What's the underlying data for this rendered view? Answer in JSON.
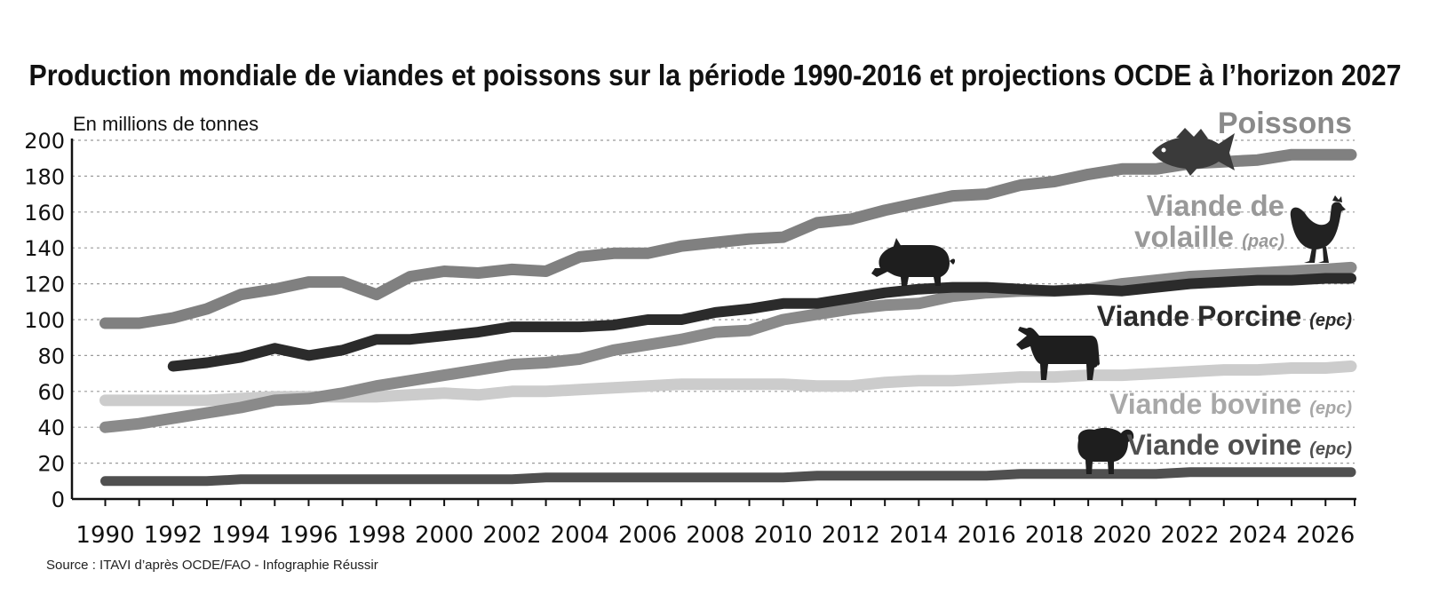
{
  "chart_data": {
    "type": "line",
    "title": "Production mondiale de viandes et poissons sur la période 1990-2016 et projections OCDE à l’horizon 2027",
    "ylabel": "En millions de tonnes",
    "xlabel": "",
    "source": "Source : ITAVI d’après OCDE/FAO - Infographie Réussir",
    "xlim": [
      1990,
      2027
    ],
    "ylim": [
      0,
      200
    ],
    "x_ticks": [
      1990,
      1992,
      1994,
      1996,
      1998,
      2000,
      2002,
      2004,
      2006,
      2008,
      2010,
      2012,
      2014,
      2016,
      2018,
      2020,
      2022,
      2024,
      2026
    ],
    "y_ticks": [
      0,
      20,
      40,
      60,
      80,
      100,
      120,
      140,
      160,
      180,
      200
    ],
    "grid": "horizontal dashed",
    "series": [
      {
        "name": "Poissons",
        "unit": "",
        "color": "#808080",
        "x": [
          1990,
          1991,
          1992,
          1993,
          1994,
          1995,
          1996,
          1997,
          1998,
          1999,
          2000,
          2001,
          2002,
          2003,
          2004,
          2005,
          2006,
          2007,
          2008,
          2009,
          2010,
          2011,
          2012,
          2013,
          2014,
          2015,
          2016,
          2017,
          2018,
          2019,
          2020,
          2021,
          2022,
          2023,
          2024,
          2025,
          2026,
          2027
        ],
        "values": [
          98,
          98,
          101,
          106,
          114,
          117,
          121,
          121,
          114,
          124,
          127,
          126,
          128,
          127,
          135,
          137,
          137,
          141,
          143,
          145,
          146,
          154,
          156,
          161,
          165,
          169,
          170,
          175,
          177,
          181,
          184,
          184,
          187,
          188,
          189,
          192,
          192,
          192
        ]
      },
      {
        "name": "Viande de volaille",
        "unit": "(pac)",
        "color": "#8a8a8a",
        "x": [
          1990,
          1991,
          1992,
          1993,
          1994,
          1995,
          1996,
          1997,
          1998,
          1999,
          2000,
          2001,
          2002,
          2003,
          2004,
          2005,
          2006,
          2007,
          2008,
          2009,
          2010,
          2011,
          2012,
          2013,
          2014,
          2015,
          2016,
          2017,
          2018,
          2019,
          2020,
          2021,
          2022,
          2023,
          2024,
          2025,
          2026,
          2027
        ],
        "values": [
          40,
          42,
          45,
          48,
          51,
          55,
          56,
          59,
          63,
          66,
          69,
          72,
          75,
          76,
          78,
          83,
          86,
          89,
          93,
          94,
          100,
          103,
          106,
          108,
          109,
          113,
          115,
          116,
          116,
          117,
          120,
          122,
          124,
          125,
          126,
          127,
          128,
          129
        ]
      },
      {
        "name": "Viande Porcine",
        "unit": "(epc)",
        "color": "#2b2b2b",
        "x": [
          1992,
          1993,
          1994,
          1995,
          1996,
          1997,
          1998,
          1999,
          2000,
          2001,
          2002,
          2003,
          2004,
          2005,
          2006,
          2007,
          2008,
          2009,
          2010,
          2011,
          2012,
          2013,
          2014,
          2015,
          2016,
          2017,
          2018,
          2019,
          2020,
          2021,
          2022,
          2023,
          2024,
          2025,
          2026,
          2027
        ],
        "values": [
          74,
          76,
          79,
          84,
          80,
          83,
          89,
          89,
          91,
          93,
          96,
          96,
          96,
          97,
          100,
          100,
          104,
          106,
          109,
          109,
          112,
          115,
          117,
          118,
          118,
          117,
          116,
          117,
          116,
          118,
          120,
          121,
          122,
          122,
          123,
          123
        ]
      },
      {
        "name": "Viande bovine",
        "unit": "(epc)",
        "color": "#cccccc",
        "x": [
          1990,
          1991,
          1992,
          1993,
          1994,
          1995,
          1996,
          1997,
          1998,
          1999,
          2000,
          2001,
          2002,
          2003,
          2004,
          2005,
          2006,
          2007,
          2008,
          2009,
          2010,
          2011,
          2012,
          2013,
          2014,
          2015,
          2016,
          2017,
          2018,
          2019,
          2020,
          2021,
          2022,
          2023,
          2024,
          2025,
          2026,
          2027
        ],
        "values": [
          55,
          55,
          55,
          55,
          56,
          57,
          57,
          57,
          57,
          58,
          59,
          58,
          60,
          60,
          61,
          62,
          63,
          64,
          64,
          64,
          64,
          63,
          63,
          65,
          66,
          66,
          67,
          68,
          68,
          69,
          69,
          70,
          71,
          72,
          72,
          73,
          73,
          74
        ]
      },
      {
        "name": "Viande ovine",
        "unit": "(epc)",
        "color": "#505050",
        "x": [
          1990,
          1991,
          1992,
          1993,
          1994,
          1995,
          1996,
          1997,
          1998,
          1999,
          2000,
          2001,
          2002,
          2003,
          2004,
          2005,
          2006,
          2007,
          2008,
          2009,
          2010,
          2011,
          2012,
          2013,
          2014,
          2015,
          2016,
          2017,
          2018,
          2019,
          2020,
          2021,
          2022,
          2023,
          2024,
          2025,
          2026,
          2027
        ],
        "values": [
          10,
          10,
          10,
          10,
          11,
          11,
          11,
          11,
          11,
          11,
          11,
          11,
          11,
          12,
          12,
          12,
          12,
          12,
          12,
          12,
          12,
          13,
          13,
          13,
          13,
          13,
          13,
          14,
          14,
          14,
          14,
          14,
          15,
          15,
          15,
          15,
          15,
          15
        ]
      }
    ],
    "icons": [
      "fish-icon",
      "chicken-icon",
      "pig-icon",
      "cow-icon",
      "sheep-icon"
    ]
  }
}
